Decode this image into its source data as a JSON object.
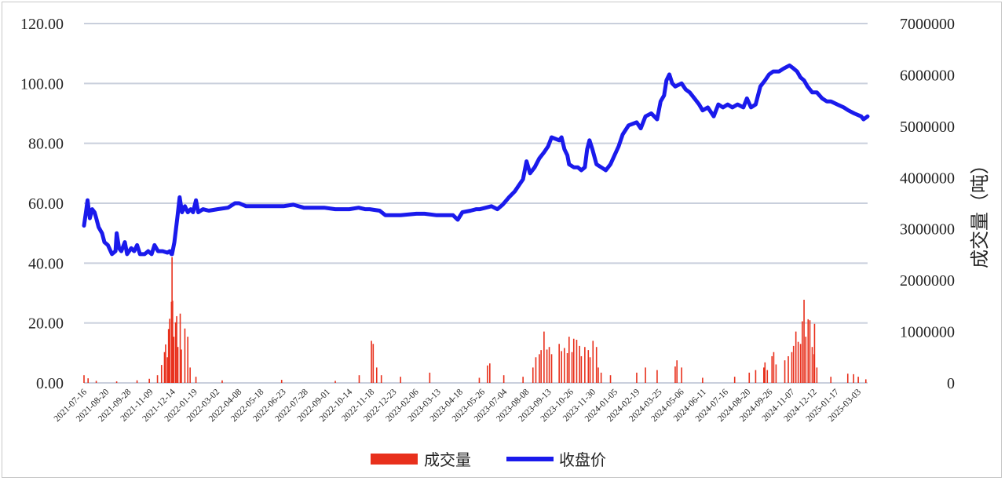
{
  "chart_data": {
    "type": "line+bar",
    "title": "",
    "xlabel": "",
    "ylabel_left": "",
    "ylabel_right": "成交量（吨）",
    "y_left": {
      "min": 0,
      "max": 120,
      "ticks": [
        "0.00",
        "20.00",
        "40.00",
        "60.00",
        "80.00",
        "100.00",
        "120.00"
      ]
    },
    "y_right": {
      "min": 0,
      "max": 7000000,
      "ticks": [
        "0",
        "1000000",
        "2000000",
        "3000000",
        "4000000",
        "5000000",
        "6000000",
        "7000000"
      ]
    },
    "x_start": "2021-07-16",
    "x_end": "2025-03-21",
    "x_tick_labels": [
      "2021-07-16",
      "2021-08-20",
      "2021-09-28",
      "2021-11-09",
      "2021-12-14",
      "2022-01-19",
      "2022-03-02",
      "2022-04-08",
      "2022-05-18",
      "2022-06-23",
      "2022-07-28",
      "2022-09-01",
      "2022-10-14",
      "2022-11-18",
      "2022-12-23",
      "2023-02-06",
      "2023-03-13",
      "2023-04-18",
      "2023-05-26",
      "2023-07-04",
      "2023-08-08",
      "2023-09-13",
      "2023-10-26",
      "2023-11-30",
      "2024-01-05",
      "2024-02-19",
      "2024-03-25",
      "2024-05-06",
      "2024-06-11",
      "2024-07-16",
      "2024-08-20",
      "2024-09-26",
      "2024-11-07",
      "2024-12-12",
      "2025-01-17",
      "2025-03-03"
    ],
    "grid": true,
    "legend_position": "bottom",
    "series": [
      {
        "name": "成交量",
        "type": "bar",
        "axis": "right",
        "color": "#e8301c",
        "points": [
          [
            "2021-07-16",
            150000
          ],
          [
            "2021-07-23",
            90000
          ],
          [
            "2021-08-06",
            40000
          ],
          [
            "2021-09-10",
            30000
          ],
          [
            "2021-10-15",
            50000
          ],
          [
            "2021-11-05",
            80000
          ],
          [
            "2021-11-19",
            150000
          ],
          [
            "2021-11-26",
            350000
          ],
          [
            "2021-12-01",
            600000
          ],
          [
            "2021-12-03",
            750000
          ],
          [
            "2021-12-06",
            500000
          ],
          [
            "2021-12-08",
            1050000
          ],
          [
            "2021-12-10",
            1250000
          ],
          [
            "2021-12-13",
            1580000
          ],
          [
            "2021-12-14",
            2450000
          ],
          [
            "2021-12-15",
            1600000
          ],
          [
            "2021-12-17",
            900000
          ],
          [
            "2021-12-20",
            1180000
          ],
          [
            "2021-12-22",
            1300000
          ],
          [
            "2021-12-24",
            700000
          ],
          [
            "2021-12-28",
            1350000
          ],
          [
            "2021-12-30",
            650000
          ],
          [
            "2022-01-05",
            1060000
          ],
          [
            "2022-01-10",
            900000
          ],
          [
            "2022-01-14",
            300000
          ],
          [
            "2022-01-24",
            120000
          ],
          [
            "2022-03-10",
            50000
          ],
          [
            "2022-06-20",
            60000
          ],
          [
            "2022-09-20",
            40000
          ],
          [
            "2022-10-31",
            150000
          ],
          [
            "2022-11-21",
            820000
          ],
          [
            "2022-11-24",
            760000
          ],
          [
            "2022-11-30",
            300000
          ],
          [
            "2022-12-08",
            150000
          ],
          [
            "2023-01-10",
            120000
          ],
          [
            "2023-03-01",
            200000
          ],
          [
            "2023-05-25",
            100000
          ],
          [
            "2023-06-08",
            340000
          ],
          [
            "2023-06-12",
            380000
          ],
          [
            "2023-07-06",
            150000
          ],
          [
            "2023-08-08",
            120000
          ],
          [
            "2023-08-25",
            300000
          ],
          [
            "2023-08-30",
            500000
          ],
          [
            "2023-09-05",
            560000
          ],
          [
            "2023-09-08",
            640000
          ],
          [
            "2023-09-13",
            1000000
          ],
          [
            "2023-09-18",
            650000
          ],
          [
            "2023-09-22",
            700000
          ],
          [
            "2023-09-26",
            560000
          ],
          [
            "2023-10-09",
            760000
          ],
          [
            "2023-10-13",
            620000
          ],
          [
            "2023-10-18",
            680000
          ],
          [
            "2023-10-23",
            580000
          ],
          [
            "2023-10-26",
            900000
          ],
          [
            "2023-10-31",
            600000
          ],
          [
            "2023-11-03",
            860000
          ],
          [
            "2023-11-08",
            840000
          ],
          [
            "2023-11-13",
            720000
          ],
          [
            "2023-11-16",
            520000
          ],
          [
            "2023-11-22",
            700000
          ],
          [
            "2023-11-28",
            640000
          ],
          [
            "2023-12-01",
            500000
          ],
          [
            "2023-12-06",
            820000
          ],
          [
            "2023-12-12",
            700000
          ],
          [
            "2023-12-15",
            300000
          ],
          [
            "2023-12-20",
            200000
          ],
          [
            "2024-01-05",
            150000
          ],
          [
            "2024-02-19",
            200000
          ],
          [
            "2024-03-05",
            300000
          ],
          [
            "2024-03-25",
            250000
          ],
          [
            "2024-04-25",
            320000
          ],
          [
            "2024-04-28",
            440000
          ],
          [
            "2024-05-06",
            300000
          ],
          [
            "2024-06-11",
            100000
          ],
          [
            "2024-08-05",
            120000
          ],
          [
            "2024-08-30",
            200000
          ],
          [
            "2024-09-10",
            250000
          ],
          [
            "2024-09-24",
            300000
          ],
          [
            "2024-09-26",
            400000
          ],
          [
            "2024-09-30",
            250000
          ],
          [
            "2024-10-08",
            520000
          ],
          [
            "2024-10-11",
            600000
          ],
          [
            "2024-10-15",
            360000
          ],
          [
            "2024-10-30",
            440000
          ],
          [
            "2024-11-05",
            520000
          ],
          [
            "2024-11-11",
            600000
          ],
          [
            "2024-11-14",
            720000
          ],
          [
            "2024-11-18",
            1000000
          ],
          [
            "2024-11-22",
            800000
          ],
          [
            "2024-11-26",
            760000
          ],
          [
            "2024-11-29",
            1200000
          ],
          [
            "2024-12-02",
            1620000
          ],
          [
            "2024-12-05",
            900000
          ],
          [
            "2024-12-09",
            1240000
          ],
          [
            "2024-12-12",
            1220000
          ],
          [
            "2024-12-16",
            700000
          ],
          [
            "2024-12-19",
            560000
          ],
          [
            "2024-12-20",
            1150000
          ],
          [
            "2024-12-24",
            300000
          ],
          [
            "2025-01-17",
            120000
          ],
          [
            "2025-02-15",
            180000
          ],
          [
            "2025-02-25",
            170000
          ],
          [
            "2025-03-05",
            120000
          ],
          [
            "2025-03-18",
            70000
          ]
        ]
      },
      {
        "name": "收盘价",
        "type": "line",
        "axis": "left",
        "color": "#1a1aec",
        "points": [
          [
            "2021-07-16",
            52.5
          ],
          [
            "2021-07-20",
            58
          ],
          [
            "2021-07-22",
            61
          ],
          [
            "2021-07-26",
            55
          ],
          [
            "2021-07-30",
            58
          ],
          [
            "2021-08-03",
            57
          ],
          [
            "2021-08-06",
            55
          ],
          [
            "2021-08-10",
            52
          ],
          [
            "2021-08-16",
            50
          ],
          [
            "2021-08-20",
            47
          ],
          [
            "2021-08-26",
            46
          ],
          [
            "2021-09-02",
            43
          ],
          [
            "2021-09-08",
            44
          ],
          [
            "2021-09-10",
            50
          ],
          [
            "2021-09-14",
            45
          ],
          [
            "2021-09-18",
            44
          ],
          [
            "2021-09-24",
            47
          ],
          [
            "2021-09-28",
            43
          ],
          [
            "2021-10-05",
            45
          ],
          [
            "2021-10-10",
            44
          ],
          [
            "2021-10-15",
            46
          ],
          [
            "2021-10-20",
            43
          ],
          [
            "2021-10-28",
            43
          ],
          [
            "2021-11-03",
            44
          ],
          [
            "2021-11-09",
            43
          ],
          [
            "2021-11-14",
            46
          ],
          [
            "2021-11-20",
            44
          ],
          [
            "2021-11-28",
            44
          ],
          [
            "2021-12-06",
            43.5
          ],
          [
            "2021-12-10",
            44
          ],
          [
            "2021-12-13",
            43
          ],
          [
            "2021-12-14",
            43
          ],
          [
            "2021-12-18",
            47
          ],
          [
            "2021-12-23",
            55
          ],
          [
            "2021-12-27",
            62
          ],
          [
            "2021-12-31",
            57
          ],
          [
            "2022-01-05",
            59
          ],
          [
            "2022-01-10",
            57
          ],
          [
            "2022-01-15",
            58
          ],
          [
            "2022-01-19",
            57
          ],
          [
            "2022-01-24",
            61
          ],
          [
            "2022-01-28",
            57
          ],
          [
            "2022-02-05",
            58
          ],
          [
            "2022-02-15",
            57.5
          ],
          [
            "2022-03-02",
            58
          ],
          [
            "2022-03-20",
            58.5
          ],
          [
            "2022-04-01",
            60
          ],
          [
            "2022-04-08",
            60
          ],
          [
            "2022-04-20",
            59
          ],
          [
            "2022-05-01",
            59
          ],
          [
            "2022-05-18",
            59
          ],
          [
            "2022-06-10",
            59
          ],
          [
            "2022-06-23",
            59
          ],
          [
            "2022-07-10",
            59.5
          ],
          [
            "2022-07-28",
            58.5
          ],
          [
            "2022-08-10",
            58.5
          ],
          [
            "2022-09-01",
            58.5
          ],
          [
            "2022-09-20",
            58
          ],
          [
            "2022-10-14",
            58
          ],
          [
            "2022-10-30",
            58.5
          ],
          [
            "2022-11-10",
            58
          ],
          [
            "2022-11-18",
            58
          ],
          [
            "2022-12-05",
            57.5
          ],
          [
            "2022-12-15",
            56
          ],
          [
            "2022-12-23",
            56
          ],
          [
            "2023-01-10",
            56
          ],
          [
            "2023-02-06",
            56.5
          ],
          [
            "2023-02-20",
            56.5
          ],
          [
            "2023-03-13",
            56
          ],
          [
            "2023-03-28",
            56
          ],
          [
            "2023-04-10",
            56
          ],
          [
            "2023-04-18",
            54.5
          ],
          [
            "2023-04-26",
            57
          ],
          [
            "2023-05-10",
            57.5
          ],
          [
            "2023-05-20",
            58
          ],
          [
            "2023-05-26",
            58
          ],
          [
            "2023-06-05",
            58.5
          ],
          [
            "2023-06-15",
            59
          ],
          [
            "2023-06-25",
            58
          ],
          [
            "2023-07-04",
            59.5
          ],
          [
            "2023-07-15",
            62
          ],
          [
            "2023-07-25",
            64
          ],
          [
            "2023-08-01",
            66
          ],
          [
            "2023-08-08",
            68
          ],
          [
            "2023-08-14",
            74
          ],
          [
            "2023-08-20",
            70
          ],
          [
            "2023-08-28",
            72
          ],
          [
            "2023-09-05",
            75
          ],
          [
            "2023-09-13",
            77
          ],
          [
            "2023-09-20",
            79
          ],
          [
            "2023-09-26",
            82
          ],
          [
            "2023-10-09",
            81
          ],
          [
            "2023-10-13",
            82
          ],
          [
            "2023-10-18",
            78
          ],
          [
            "2023-10-23",
            76
          ],
          [
            "2023-10-26",
            73
          ],
          [
            "2023-11-03",
            72
          ],
          [
            "2023-11-10",
            72
          ],
          [
            "2023-11-16",
            71
          ],
          [
            "2023-11-22",
            72
          ],
          [
            "2023-11-26",
            78
          ],
          [
            "2023-11-30",
            81
          ],
          [
            "2023-12-05",
            78
          ],
          [
            "2023-12-12",
            73
          ],
          [
            "2023-12-20",
            72
          ],
          [
            "2023-12-28",
            71
          ],
          [
            "2024-01-05",
            73
          ],
          [
            "2024-01-12",
            76
          ],
          [
            "2024-01-19",
            79
          ],
          [
            "2024-01-26",
            83
          ],
          [
            "2024-02-05",
            86
          ],
          [
            "2024-02-19",
            87
          ],
          [
            "2024-02-26",
            85
          ],
          [
            "2024-03-05",
            89
          ],
          [
            "2024-03-15",
            90
          ],
          [
            "2024-03-25",
            88
          ],
          [
            "2024-03-31",
            94
          ],
          [
            "2024-04-06",
            96
          ],
          [
            "2024-04-10",
            101
          ],
          [
            "2024-04-15",
            103
          ],
          [
            "2024-04-20",
            100
          ],
          [
            "2024-04-25",
            99
          ],
          [
            "2024-05-06",
            100
          ],
          [
            "2024-05-13",
            98
          ],
          [
            "2024-05-20",
            97
          ],
          [
            "2024-05-28",
            95
          ],
          [
            "2024-06-05",
            93
          ],
          [
            "2024-06-11",
            91
          ],
          [
            "2024-06-20",
            92
          ],
          [
            "2024-06-30",
            89
          ],
          [
            "2024-07-08",
            93
          ],
          [
            "2024-07-16",
            92
          ],
          [
            "2024-07-24",
            93
          ],
          [
            "2024-08-01",
            92
          ],
          [
            "2024-08-10",
            93
          ],
          [
            "2024-08-20",
            92
          ],
          [
            "2024-08-26",
            95
          ],
          [
            "2024-09-02",
            92
          ],
          [
            "2024-09-10",
            93
          ],
          [
            "2024-09-18",
            99
          ],
          [
            "2024-09-26",
            101
          ],
          [
            "2024-10-03",
            103
          ],
          [
            "2024-10-10",
            104
          ],
          [
            "2024-10-20",
            104
          ],
          [
            "2024-10-28",
            105
          ],
          [
            "2024-11-07",
            106
          ],
          [
            "2024-11-14",
            105
          ],
          [
            "2024-11-20",
            104
          ],
          [
            "2024-11-26",
            102
          ],
          [
            "2024-12-02",
            101
          ],
          [
            "2024-12-08",
            99
          ],
          [
            "2024-12-16",
            97
          ],
          [
            "2024-12-24",
            97
          ],
          [
            "2025-01-02",
            95
          ],
          [
            "2025-01-10",
            94
          ],
          [
            "2025-01-17",
            94
          ],
          [
            "2025-01-28",
            93
          ],
          [
            "2025-02-08",
            92
          ],
          [
            "2025-02-16",
            91
          ],
          [
            "2025-02-26",
            90
          ],
          [
            "2025-03-04",
            89.5
          ],
          [
            "2025-03-10",
            89
          ],
          [
            "2025-03-14",
            88
          ],
          [
            "2025-03-21",
            89
          ]
        ]
      }
    ]
  }
}
